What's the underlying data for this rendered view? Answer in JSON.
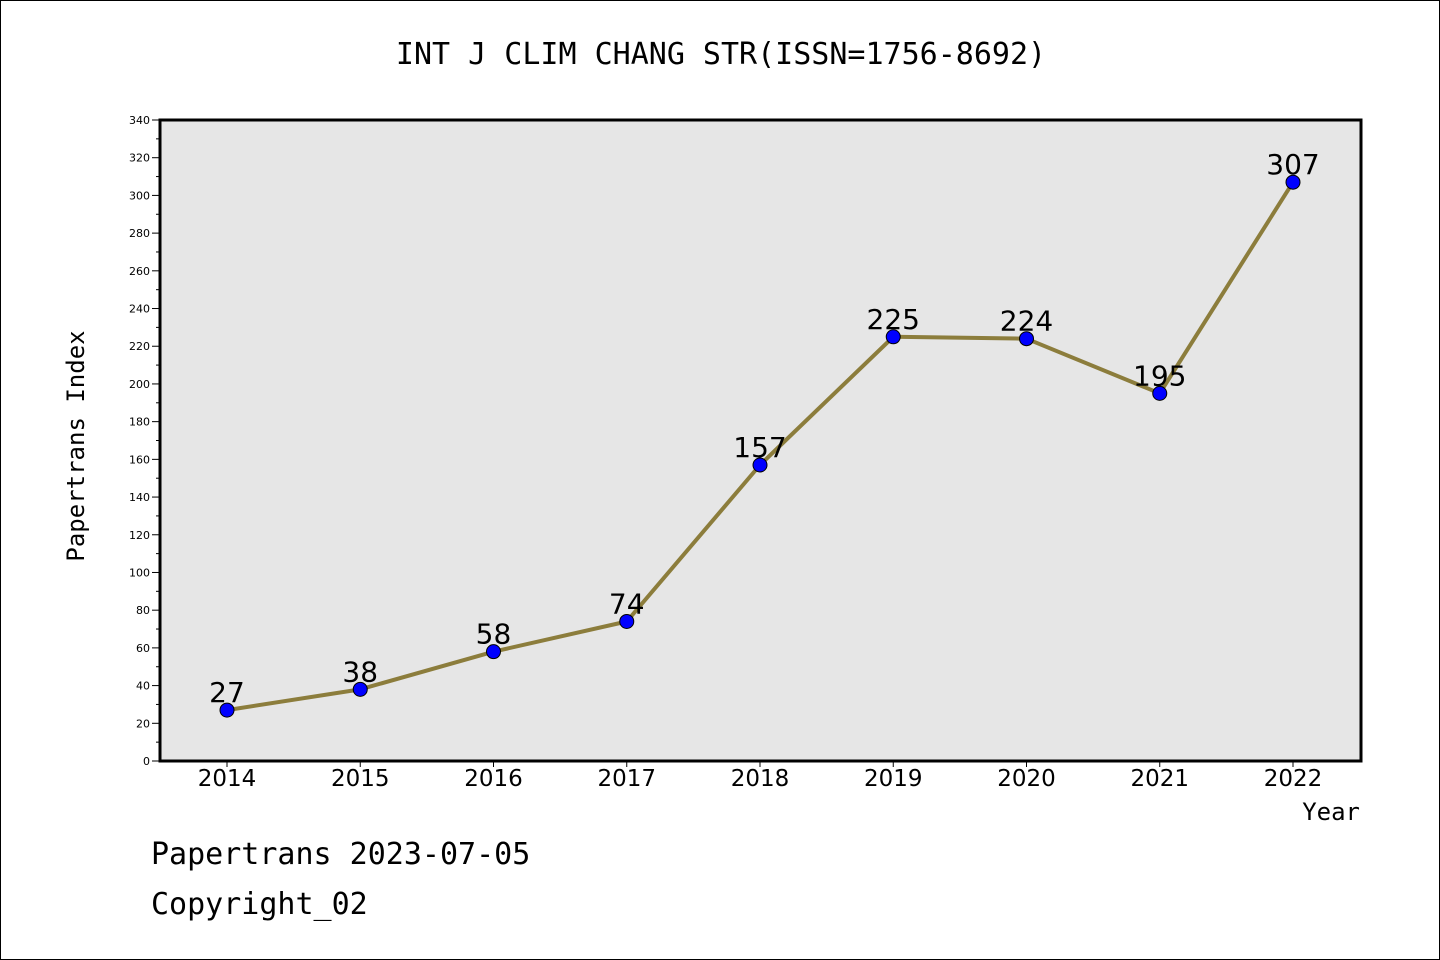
{
  "title": "INT J CLIM CHANG STR(ISSN=1756-8692)",
  "footer": {
    "line1": "Papertrans 2023-07-05",
    "line2": "Copyright_02"
  },
  "colors": {
    "line": "#8c7d3c",
    "marker": "#0000ff",
    "plot_background": "#e6e6e6"
  },
  "chart_data": {
    "type": "line",
    "title": "INT J CLIM CHANG STR(ISSN=1756-8692)",
    "xlabel": "Year",
    "ylabel": "Papertrans Index",
    "categories": [
      "2014",
      "2015",
      "2016",
      "2017",
      "2018",
      "2019",
      "2020",
      "2021",
      "2022"
    ],
    "values": [
      27,
      38,
      58,
      74,
      157,
      225,
      224,
      195,
      307
    ],
    "data_labels": [
      "27",
      "38",
      "58",
      "74",
      "157",
      "225",
      "224",
      "195",
      "307"
    ],
    "ylim": [
      0,
      340
    ],
    "yticks": [
      "0",
      "20",
      "40",
      "60",
      "80",
      "100",
      "120",
      "140",
      "160",
      "180",
      "200",
      "220",
      "240",
      "260",
      "280",
      "300",
      "320",
      "340"
    ],
    "grid": false,
    "legend": "none"
  }
}
